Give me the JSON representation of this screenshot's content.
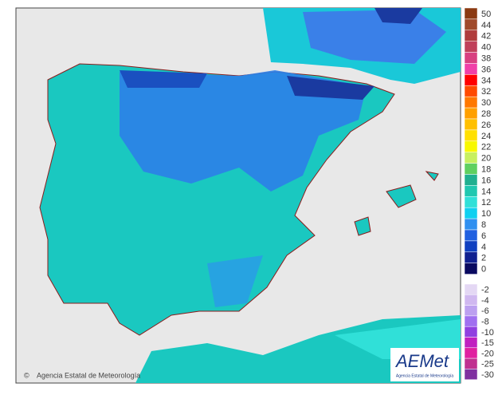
{
  "credit": "Agencia Estatal de Meteorología",
  "logo": {
    "name": "AEMet",
    "subtitle": "Agencia Estatal de Meteorología"
  },
  "legend": {
    "positive": [
      {
        "label": "50",
        "color": "#8b3a12"
      },
      {
        "label": "44",
        "color": "#a04a2a"
      },
      {
        "label": "42",
        "color": "#b03c3c"
      },
      {
        "label": "40",
        "color": "#c0405a"
      },
      {
        "label": "38",
        "color": "#d84080"
      },
      {
        "label": "36",
        "color": "#f040a8"
      },
      {
        "label": "34",
        "color": "#ff0000"
      },
      {
        "label": "32",
        "color": "#ff4a00"
      },
      {
        "label": "30",
        "color": "#ff7800"
      },
      {
        "label": "28",
        "color": "#ffa000"
      },
      {
        "label": "26",
        "color": "#ffc000"
      },
      {
        "label": "24",
        "color": "#ffe000"
      },
      {
        "label": "22",
        "color": "#f8f800"
      },
      {
        "label": "20",
        "color": "#c8f060"
      },
      {
        "label": "18",
        "color": "#60d060"
      },
      {
        "label": "16",
        "color": "#20b090"
      },
      {
        "label": "14",
        "color": "#20c8b0"
      },
      {
        "label": "12",
        "color": "#30e0d8"
      },
      {
        "label": "10",
        "color": "#10d0f0"
      },
      {
        "label": "8",
        "color": "#3090f0"
      },
      {
        "label": "6",
        "color": "#2060e0"
      },
      {
        "label": "4",
        "color": "#1040c0"
      },
      {
        "label": "2",
        "color": "#102090"
      },
      {
        "label": "0",
        "color": "#0a0a60"
      }
    ],
    "negative": [
      {
        "label": "-2",
        "color": "#e4d8f4"
      },
      {
        "label": "-4",
        "color": "#d0b8f0"
      },
      {
        "label": "-6",
        "color": "#bca0f0"
      },
      {
        "label": "-8",
        "color": "#a070f0"
      },
      {
        "label": "-10",
        "color": "#9040e0"
      },
      {
        "label": "-15",
        "color": "#c020c0"
      },
      {
        "label": "-20",
        "color": "#e020a0"
      },
      {
        "label": "-25",
        "color": "#c03090"
      },
      {
        "label": "-30",
        "color": "#8030a0"
      }
    ]
  }
}
